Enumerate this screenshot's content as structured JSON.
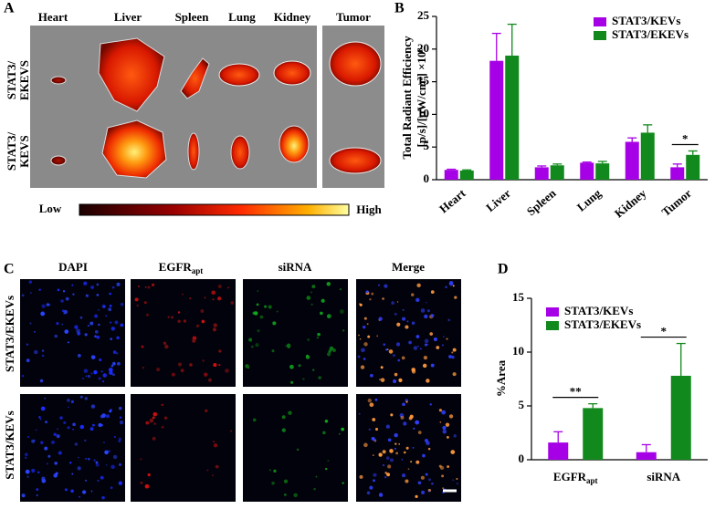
{
  "panel_labels": [
    "A",
    "B",
    "C",
    "D"
  ],
  "imaging": {
    "organs": [
      "Heart",
      "Liver",
      "Spleen",
      "Lung",
      "Kidney",
      "Tumor"
    ],
    "rows": [
      [
        "STAT3/",
        "EKEVS"
      ],
      [
        "STAT3/",
        "KEVS"
      ]
    ],
    "colorbar": {
      "low": "Low",
      "high": "High"
    }
  },
  "microscopy": {
    "columns": [
      {
        "text": "DAPI"
      },
      {
        "text": "EGFR",
        "sub": "apt"
      },
      {
        "text": "siRNA"
      },
      {
        "text": "Merge"
      }
    ],
    "rows": [
      "STAT3/EKEVs",
      "STAT3/KEVs"
    ]
  },
  "chart_data": [
    {
      "type": "bar",
      "ylabel": [
        "Total Radiant Efficiency",
        "[p/s]/[μW/cm²] ×10⁸"
      ],
      "categories": [
        "Heart",
        "Liver",
        "Spleen",
        "Lung",
        "Kidney",
        "Tumor"
      ],
      "series": [
        {
          "name": "STAT3/KEVs",
          "color": "#a600e6",
          "values": [
            1.5,
            18.2,
            1.9,
            2.6,
            5.8,
            1.9
          ],
          "errors": [
            0.1,
            4.2,
            0.2,
            0.1,
            0.6,
            0.5
          ]
        },
        {
          "name": "STAT3/EKEVs",
          "color": "#12891c",
          "values": [
            1.4,
            19.0,
            2.2,
            2.5,
            7.2,
            3.8
          ],
          "errors": [
            0.1,
            4.8,
            0.2,
            0.3,
            1.2,
            0.6
          ]
        }
      ],
      "annotations": [
        {
          "text": "*",
          "category": "Tumor"
        }
      ],
      "ylim": [
        0,
        25
      ],
      "yticks": [
        0,
        5,
        10,
        15,
        20,
        25
      ],
      "grid": false
    },
    {
      "type": "bar",
      "ylabel": [
        "%Area"
      ],
      "categories": [
        "EGFR",
        "siRNA"
      ],
      "category_subscripts": [
        "apt",
        null
      ],
      "series": [
        {
          "name": "STAT3/KEVs",
          "color": "#a600e6",
          "values": [
            1.6,
            0.7
          ],
          "errors": [
            1.0,
            0.7
          ]
        },
        {
          "name": "STAT3/EKEVs",
          "color": "#12891c",
          "values": [
            4.8,
            7.8
          ],
          "errors": [
            0.4,
            3.0
          ]
        }
      ],
      "annotations": [
        {
          "text": "**",
          "category": "EGFR"
        },
        {
          "text": "*",
          "category": "siRNA"
        }
      ],
      "ylim": [
        0,
        15
      ],
      "yticks": [
        0,
        5,
        10,
        15
      ],
      "grid": false
    }
  ]
}
